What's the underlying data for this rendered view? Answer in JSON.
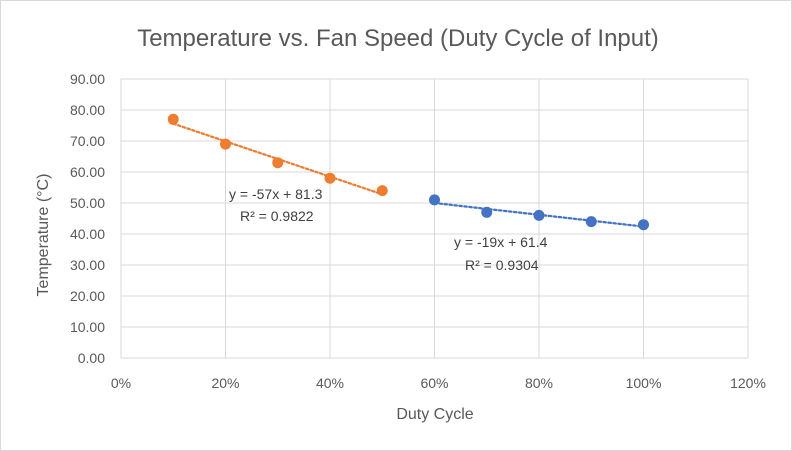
{
  "chart_data": {
    "type": "scatter",
    "title": "Temperature vs. Fan Speed (Duty Cycle of Input)",
    "xlabel": "Duty Cycle",
    "ylabel": "Temperature (°C)",
    "xlim": [
      0,
      1.2
    ],
    "ylim": [
      0,
      90
    ],
    "x_ticks": [
      "0%",
      "20%",
      "40%",
      "60%",
      "80%",
      "100%",
      "120%"
    ],
    "y_ticks": [
      "0.00",
      "10.00",
      "20.00",
      "30.00",
      "40.00",
      "50.00",
      "60.00",
      "70.00",
      "80.00",
      "90.00"
    ],
    "grid": true,
    "legend": "none",
    "series": [
      {
        "color": "#ED7D31",
        "x": [
          0.1,
          0.2,
          0.3,
          0.4,
          0.5
        ],
        "y": [
          77,
          69,
          63,
          58,
          54
        ],
        "trendline": {
          "type": "linear",
          "slope": -57,
          "intercept": 81.3,
          "equation": "y = -57x + 81.3",
          "r2_label": "R² = 0.9822"
        }
      },
      {
        "color": "#4472C4",
        "x": [
          0.6,
          0.7,
          0.8,
          0.9,
          1.0
        ],
        "y": [
          51,
          47,
          46,
          44,
          43
        ],
        "trendline": {
          "type": "linear",
          "slope": -19,
          "intercept": 61.4,
          "equation": "y = -19x + 61.4",
          "r2_label": "R² = 0.9304"
        }
      }
    ]
  }
}
